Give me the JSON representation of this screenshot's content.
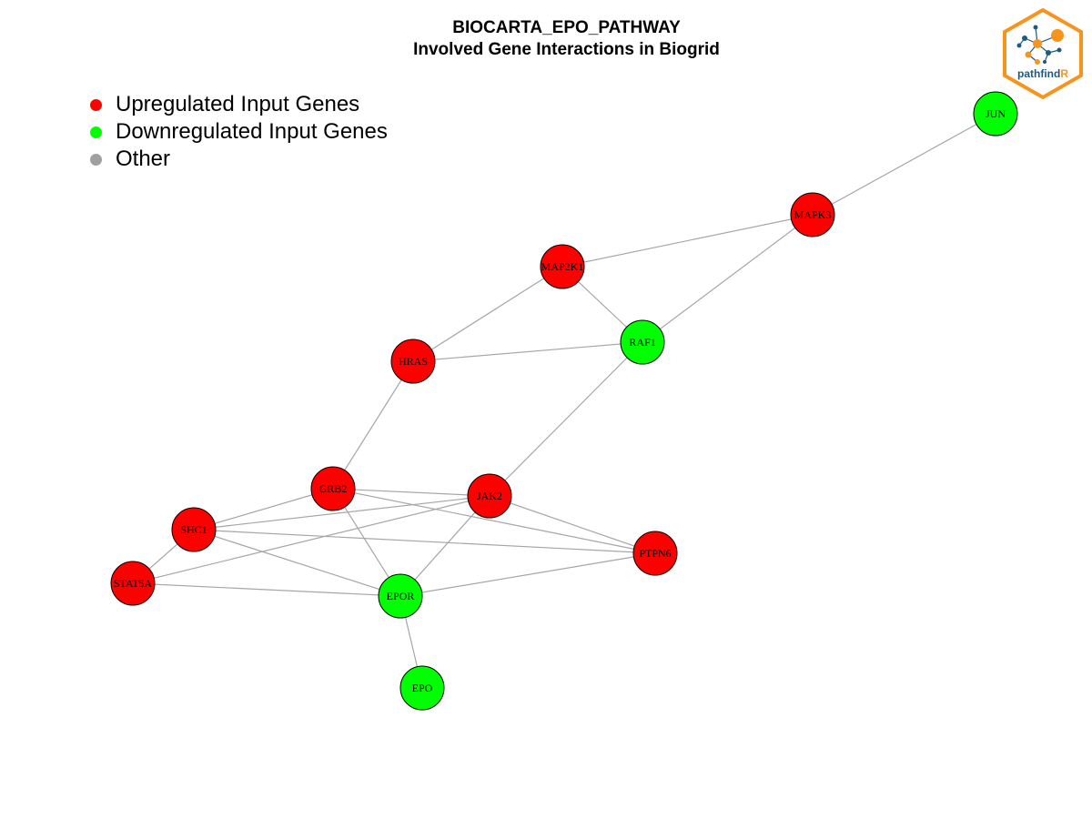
{
  "title": "BIOCARTA_EPO_PATHWAY",
  "subtitle": "Involved Gene Interactions in Biogrid",
  "legend": [
    {
      "label": "Upregulated Input Genes",
      "color": "#ff0000"
    },
    {
      "label": "Downregulated Input Genes",
      "color": "#00ff00"
    },
    {
      "label": "Other",
      "color": "#a0a0a0"
    }
  ],
  "logo": {
    "text_main": "pathfind",
    "text_accent": "R",
    "border_color": "#f7941d",
    "text_color": "#1b5a85"
  },
  "colors": {
    "up": "#ff0000",
    "down": "#00ff00",
    "edge": "#a6a6a6"
  },
  "nodes": [
    {
      "id": "JUN",
      "status": "down"
    },
    {
      "id": "MAPK3",
      "status": "up"
    },
    {
      "id": "MAP2K1",
      "status": "up"
    },
    {
      "id": "RAF1",
      "status": "down"
    },
    {
      "id": "HRAS",
      "status": "up"
    },
    {
      "id": "GRB2",
      "status": "up"
    },
    {
      "id": "JAK2",
      "status": "up"
    },
    {
      "id": "SHC1",
      "status": "up"
    },
    {
      "id": "PTPN6",
      "status": "up"
    },
    {
      "id": "STAT5A",
      "status": "up"
    },
    {
      "id": "EPOR",
      "status": "down"
    },
    {
      "id": "EPO",
      "status": "down"
    }
  ],
  "edges": [
    [
      "JUN",
      "MAPK3"
    ],
    [
      "MAPK3",
      "MAP2K1"
    ],
    [
      "MAPK3",
      "RAF1"
    ],
    [
      "MAP2K1",
      "RAF1"
    ],
    [
      "MAP2K1",
      "HRAS"
    ],
    [
      "HRAS",
      "RAF1"
    ],
    [
      "HRAS",
      "GRB2"
    ],
    [
      "RAF1",
      "JAK2"
    ],
    [
      "GRB2",
      "JAK2"
    ],
    [
      "GRB2",
      "SHC1"
    ],
    [
      "GRB2",
      "PTPN6"
    ],
    [
      "GRB2",
      "EPOR"
    ],
    [
      "JAK2",
      "SHC1"
    ],
    [
      "JAK2",
      "STAT5A"
    ],
    [
      "JAK2",
      "PTPN6"
    ],
    [
      "JAK2",
      "EPOR"
    ],
    [
      "SHC1",
      "STAT5A"
    ],
    [
      "SHC1",
      "EPOR"
    ],
    [
      "SHC1",
      "PTPN6"
    ],
    [
      "STAT5A",
      "EPOR"
    ],
    [
      "EPOR",
      "PTPN6"
    ],
    [
      "EPOR",
      "EPO"
    ]
  ]
}
